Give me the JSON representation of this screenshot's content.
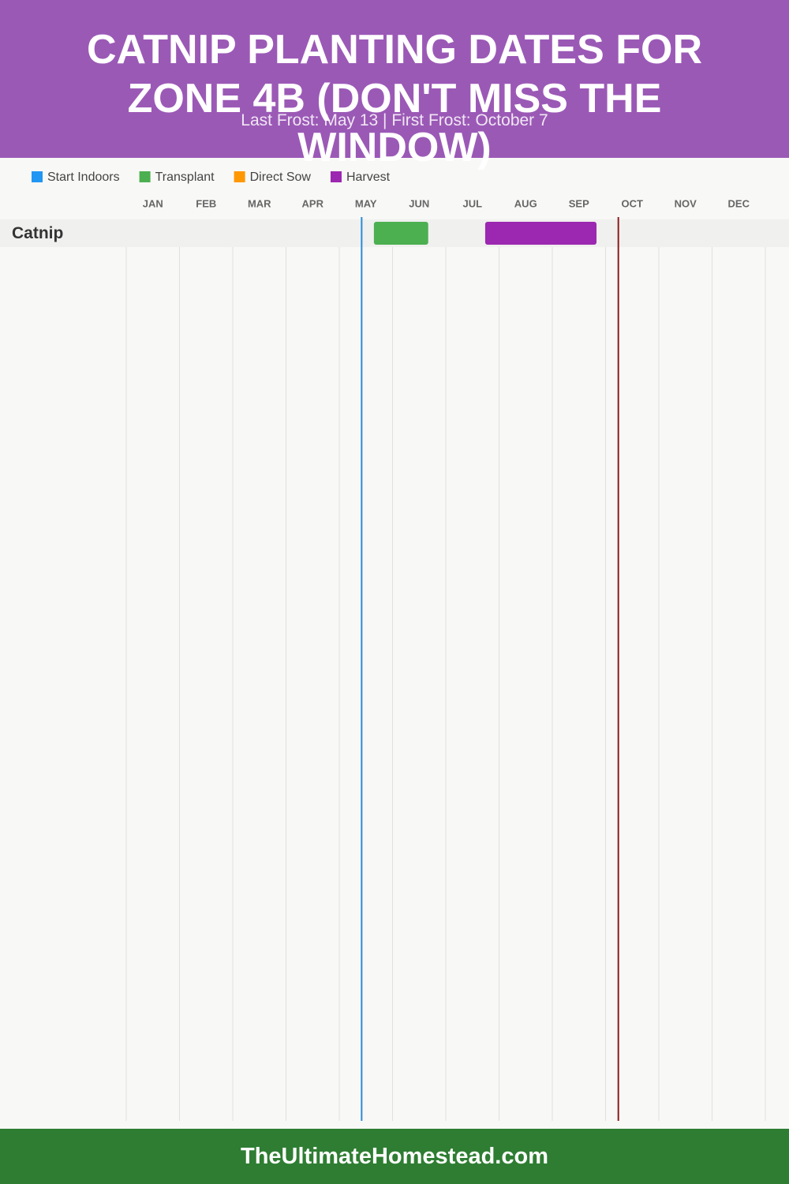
{
  "chart_data": {
    "type": "gantt",
    "title": "CATNIP PLANTING DATES FOR ZONE 4B (DON'T MISS THE WINDOW)",
    "subtitle": "Last Frost: May 13 | First Frost: October 7",
    "footer": "TheUltimateHomestead.com",
    "categories": [
      "Catnip"
    ],
    "xlim": [
      0,
      12
    ],
    "xticks": [
      {
        "value": 0.5,
        "label": "JAN"
      },
      {
        "value": 1.5,
        "label": "FEB"
      },
      {
        "value": 2.5,
        "label": "MAR"
      },
      {
        "value": 3.5,
        "label": "APR"
      },
      {
        "value": 4.5,
        "label": "MAY"
      },
      {
        "value": 5.5,
        "label": "JUN"
      },
      {
        "value": 6.5,
        "label": "JUL"
      },
      {
        "value": 7.5,
        "label": "AUG"
      },
      {
        "value": 8.5,
        "label": "SEP"
      },
      {
        "value": 9.5,
        "label": "OCT"
      },
      {
        "value": 10.5,
        "label": "NOV"
      },
      {
        "value": 11.5,
        "label": "DEC"
      }
    ],
    "gridlines": [
      0,
      1,
      2,
      3,
      4,
      5,
      6,
      7,
      8,
      9,
      10,
      11,
      12
    ],
    "grid": true,
    "series": [
      {
        "name": "Start Indoors",
        "color": "#2196f3",
        "start": [
          null
        ],
        "end": [
          null
        ]
      },
      {
        "name": "Transplant",
        "color": "#4caf50",
        "start": [
          4.65
        ],
        "end": [
          5.67
        ]
      },
      {
        "name": "Direct Sow",
        "color": "#ff9800",
        "start": [
          null
        ],
        "end": [
          null
        ]
      },
      {
        "name": "Harvest",
        "color": "#9c27b0",
        "start": [
          6.74
        ],
        "end": [
          8.83
        ]
      }
    ],
    "frost_lines": [
      {
        "value": 4.42,
        "color": "#2a8ad4"
      },
      {
        "value": 9.24,
        "color": "#8b1a1a"
      }
    ]
  }
}
